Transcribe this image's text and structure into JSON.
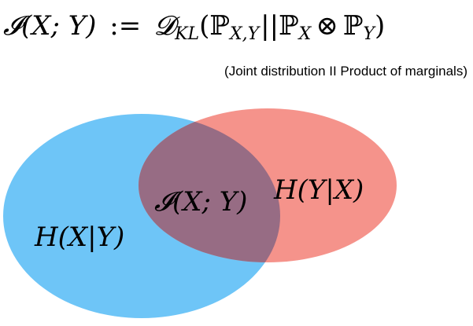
{
  "equation": {
    "text": "𝓘(X; Y) := 𝓓KL(ℙX,Y || ℙX ⊗ ℙY)",
    "lhs": "𝓘(X; Y)",
    "assign": ":=",
    "operator": "𝓓",
    "operator_sub": "KL",
    "joint": "ℙ",
    "joint_sub": "X,Y",
    "divider": "||",
    "marg_x": "ℙ",
    "marg_x_sub": "X",
    "tensor": "⊗",
    "marg_y": "ℙ",
    "marg_y_sub": "Y",
    "open_paren": "(",
    "close_paren": ")"
  },
  "caption": "(Joint distribution II Product of marginals)",
  "venn": {
    "left_label": "H(X|Y)",
    "right_label": "H(Y|X)",
    "intersection_label": "𝓘(X; Y)",
    "colors": {
      "left_circle": "#6ec5f7",
      "right_circle": "#f5938b",
      "intersection": "#976c84"
    }
  }
}
